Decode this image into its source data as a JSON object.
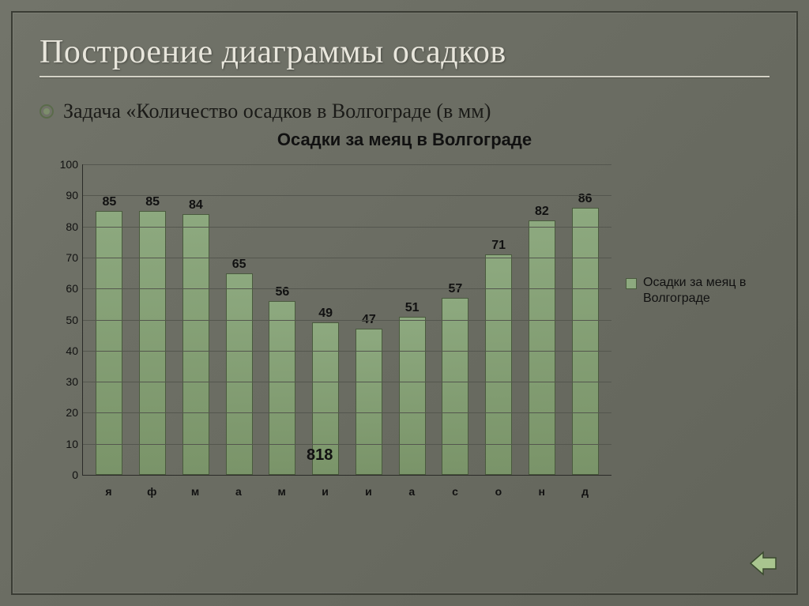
{
  "slide": {
    "title": "Построение диаграммы осадков",
    "bullet": "Задача «Количество осадков в Волгограде (в мм)",
    "background_gradient": [
      "#72746a",
      "#62645a"
    ],
    "title_color": "#e8e6dc",
    "rule_color": "#d4d2c6",
    "frame_border_color": "#3a3c34"
  },
  "chart": {
    "type": "bar",
    "title": "Осадки за меяц в Волгограде",
    "categories": [
      "я",
      "ф",
      "м",
      "а",
      "м",
      "и",
      "и",
      "а",
      "с",
      "о",
      "н",
      "д"
    ],
    "values": [
      85,
      85,
      84,
      65,
      56,
      49,
      47,
      51,
      57,
      71,
      82,
      86
    ],
    "total_label": "818",
    "ylim": [
      0,
      100
    ],
    "ytick_step": 10,
    "bar_color": "#8da97f",
    "bar_border_color": "#4a5a3e",
    "grid_color": "#54564e",
    "axis_color": "#2b2b28",
    "text_color": "#111111",
    "value_fontsize": 16,
    "axis_fontsize": 14,
    "title_fontsize": 22,
    "title_fontweight": 700,
    "bar_width": 0.62,
    "font_family": "Arial"
  },
  "legend": {
    "label": "Осадки за меяц в Волгограде",
    "swatch_color": "#8da97f"
  },
  "nav": {
    "icon": "prev-arrow",
    "fill": "#a9c58f",
    "stroke": "#3a4a2e"
  }
}
